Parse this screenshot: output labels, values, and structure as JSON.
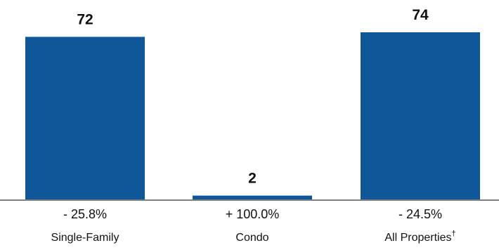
{
  "chart_data": {
    "type": "bar",
    "categories": [
      "Single-Family",
      "Condo",
      "All Properties"
    ],
    "category_suffix": [
      "",
      "",
      "†"
    ],
    "values": [
      72,
      2,
      74
    ],
    "data_labels": [
      "72",
      "2",
      "74"
    ],
    "change_labels": [
      "- 25.8%",
      "+ 100.0%",
      "- 24.5%"
    ],
    "ylim": [
      0,
      74
    ],
    "grid": false,
    "legend": "none"
  },
  "colors": {
    "bar": "#0f5799",
    "axis": "#7f7f7f",
    "text": "#111111"
  }
}
